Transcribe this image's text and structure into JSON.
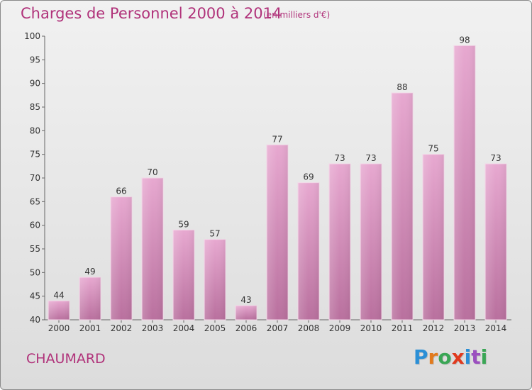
{
  "header": {
    "title": "Charges de Personnel 2000 à 2014",
    "subtitle": "(en milliers d'€)"
  },
  "footer": {
    "commune": "CHAUMARD",
    "logo": {
      "letters": [
        "P",
        "r",
        "o",
        "x",
        "i",
        "t",
        "i"
      ],
      "colors": [
        "#2b8fd6",
        "#e27a1c",
        "#3aa655",
        "#e03a1e",
        "#2b8fd6",
        "#9b4fbf",
        "#3aa655"
      ]
    }
  },
  "chart_data": {
    "type": "bar",
    "title": "Charges de Personnel 2000 à 2014",
    "subtitle": "(en milliers d'€)",
    "categories": [
      "2000",
      "2001",
      "2002",
      "2003",
      "2004",
      "2005",
      "2006",
      "2007",
      "2008",
      "2009",
      "2010",
      "2011",
      "2012",
      "2013",
      "2014"
    ],
    "values": [
      44,
      49,
      66,
      70,
      59,
      57,
      43,
      77,
      69,
      73,
      73,
      88,
      75,
      98,
      73
    ],
    "ylim": [
      40,
      100
    ],
    "yticks": [
      40,
      45,
      50,
      55,
      60,
      65,
      70,
      75,
      80,
      85,
      90,
      95,
      100
    ],
    "grid": false,
    "bar_color": "#d98cbb"
  }
}
